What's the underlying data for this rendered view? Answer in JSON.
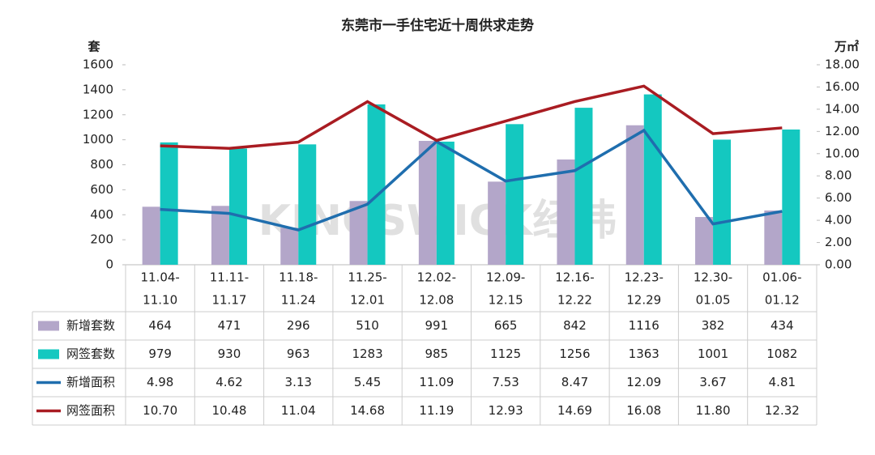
{
  "chart_data": {
    "type": "bar_line_table",
    "title": "东莞市一手住宅近十周供求走势",
    "y_label": "套",
    "y2_label": "万㎡",
    "watermark": "KINGSWICK经纬",
    "categories": [
      [
        "11.04-",
        "11.10"
      ],
      [
        "11.11-",
        "11.17"
      ],
      [
        "11.18-",
        "11.24"
      ],
      [
        "11.25-",
        "12.01"
      ],
      [
        "12.02-",
        "12.08"
      ],
      [
        "12.09-",
        "12.15"
      ],
      [
        "12.16-",
        "12.22"
      ],
      [
        "12.23-",
        "12.29"
      ],
      [
        "12.30-",
        "01.05"
      ],
      [
        "01.06-",
        "01.12"
      ]
    ],
    "ylim": [
      0,
      1600
    ],
    "yticks": [
      0,
      200,
      400,
      600,
      800,
      1000,
      1200,
      1400,
      1600
    ],
    "y2lim": [
      0,
      18
    ],
    "y2ticks": [
      {
        "value": 0,
        "label": "0.00"
      },
      {
        "value": 2,
        "label": "2.00"
      },
      {
        "value": 4,
        "label": "4.00"
      },
      {
        "value": 6,
        "label": "6.00"
      },
      {
        "value": 8,
        "label": "8.00"
      },
      {
        "value": 10,
        "label": "10.00"
      },
      {
        "value": 12,
        "label": "12.00"
      },
      {
        "value": 14,
        "label": "14.00"
      },
      {
        "value": 16,
        "label": "16.00"
      },
      {
        "value": 18,
        "label": "18.00"
      }
    ],
    "series": [
      {
        "name": "新增套数",
        "kind": "bar",
        "color": "#b3a6c9",
        "values": [
          464,
          471,
          296,
          510,
          991,
          665,
          842,
          1116,
          382,
          434
        ]
      },
      {
        "name": "网签套数",
        "kind": "bar",
        "color": "#14c8c0",
        "values": [
          979,
          930,
          963,
          1283,
          985,
          1125,
          1256,
          1363,
          1001,
          1082
        ]
      },
      {
        "name": "新增面积",
        "kind": "line",
        "axis": "y2",
        "color": "#1f6eae",
        "values": [
          4.98,
          4.62,
          3.13,
          5.45,
          11.09,
          7.53,
          8.47,
          12.09,
          3.67,
          4.81
        ]
      },
      {
        "name": "网签面积",
        "kind": "line",
        "axis": "y2",
        "color": "#a91c22",
        "values": [
          10.7,
          10.48,
          11.04,
          14.68,
          11.19,
          12.93,
          14.69,
          16.08,
          11.8,
          12.32
        ],
        "value_labels": [
          "10.70",
          "10.48",
          "11.04",
          "14.68",
          "11.19",
          "12.93",
          "14.69",
          "16.08",
          "11.80",
          "12.32"
        ]
      }
    ]
  }
}
